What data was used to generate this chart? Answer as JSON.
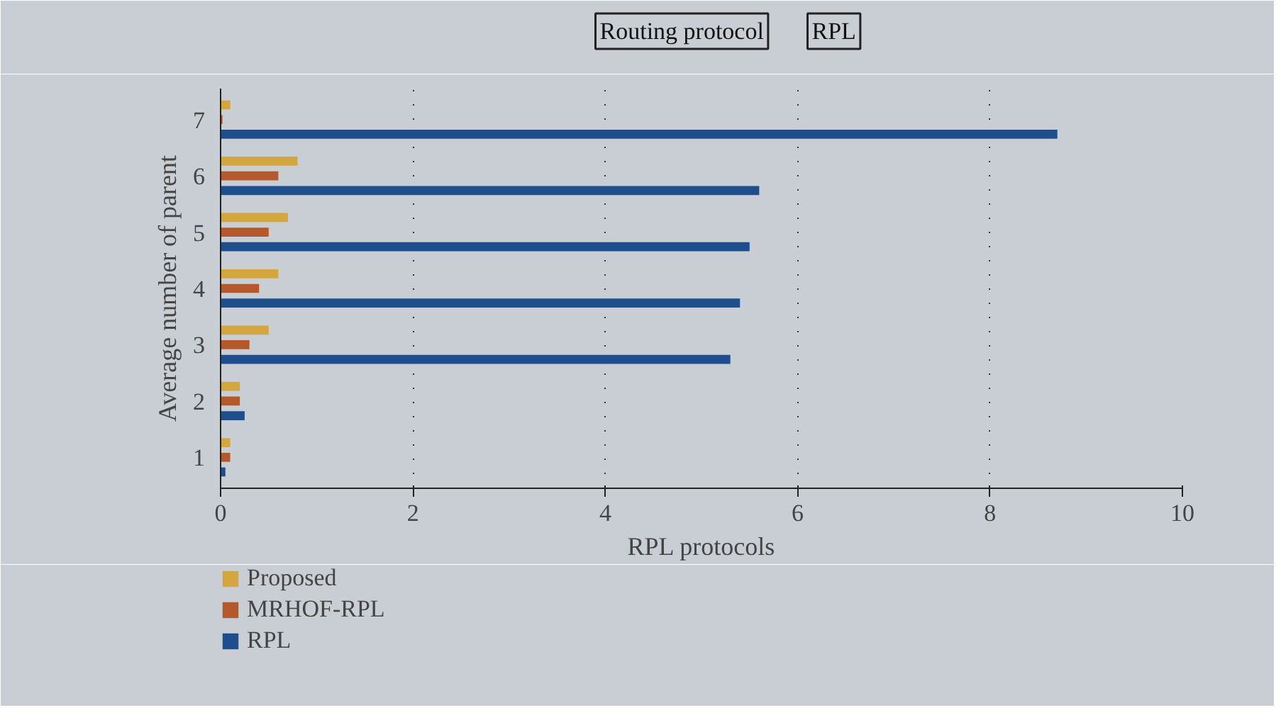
{
  "chart_data": {
    "type": "bar",
    "orientation": "horizontal",
    "title": "Routing protocol",
    "subtitle": "RPL",
    "xlabel": "RPL protocols",
    "ylabel": "Average number of parent",
    "categories": [
      "7",
      "6",
      "5",
      "4",
      "3",
      "2",
      "1"
    ],
    "series": [
      {
        "name": "Proposed",
        "color": "#d4a640",
        "values": [
          0.1,
          0.8,
          0.7,
          0.6,
          0.5,
          0.2,
          0.1
        ]
      },
      {
        "name": "MRHOF-RPL",
        "color": "#b5582c",
        "values": [
          0.02,
          0.6,
          0.5,
          0.4,
          0.3,
          0.2,
          0.1
        ]
      },
      {
        "name": "RPL",
        "color": "#1f4e8c",
        "values": [
          8.7,
          5.6,
          5.5,
          5.4,
          5.3,
          0.25,
          0.05
        ]
      }
    ],
    "xlim": [
      0,
      10
    ],
    "xticks": [
      0,
      2,
      4,
      6,
      8,
      10
    ],
    "grid": "x",
    "legend": "bottom"
  }
}
